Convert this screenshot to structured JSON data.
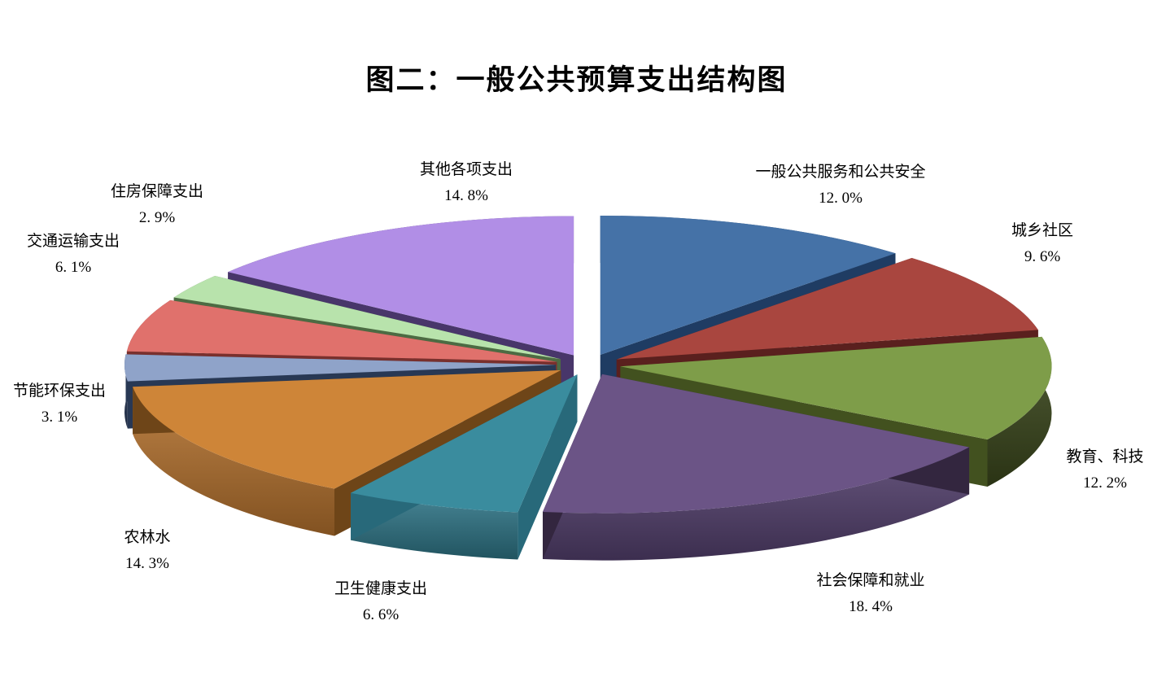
{
  "page": {
    "background": "#FFFFFF"
  },
  "chart_data": {
    "type": "pie",
    "style": "3d-exploded-pie",
    "title": "图二：一般公共预算支出结构图",
    "direction": "clockwise",
    "start_angle_deg": 0,
    "legend_position": "none",
    "data_labels": "category-name-and-percent-outside",
    "categories": [
      "一般公共服务和公共安全",
      "城乡社区",
      "教育、科技",
      "社会保障和就业",
      "卫生健康支出",
      "农林水",
      "节能环保支出",
      "交通运输支出",
      "住房保障支出",
      "其他各项支出"
    ],
    "values": [
      12.0,
      9.6,
      12.2,
      18.4,
      6.6,
      14.3,
      3.1,
      6.1,
      2.9,
      14.8
    ],
    "unit": "%",
    "slices": [
      {
        "label": "一般公共服务和公共安全",
        "value": 12.0,
        "pct_label": "12. 0%",
        "color": "#4572A7",
        "side_color": "#24456E",
        "cut_color": "#1F3C63"
      },
      {
        "label": "城乡社区",
        "value": 9.6,
        "pct_label": "9. 6%",
        "color": "#A9463F",
        "side_color": "#5E2422",
        "cut_color": "#5A201E"
      },
      {
        "label": "教育、科技",
        "value": 12.2,
        "pct_label": "12. 2%",
        "color": "#7E9D49",
        "side_color": "#3A471C",
        "cut_color": "#42511F"
      },
      {
        "label": "社会保障和就业",
        "value": 18.4,
        "pct_label": "18. 4%",
        "color": "#6B5486",
        "side_color": "#53406E",
        "cut_color": "#33263F"
      },
      {
        "label": "卫生健康支出",
        "value": 6.6,
        "pct_label": "6. 6%",
        "color": "#3A8C9E",
        "side_color": "#2E7486",
        "cut_color": "#28697A"
      },
      {
        "label": "农林水",
        "value": 14.3,
        "pct_label": "14. 3%",
        "color": "#CE8538",
        "side_color": "#B5722E",
        "cut_color": "#6E4518"
      },
      {
        "label": "节能环保支出",
        "value": 3.1,
        "pct_label": "3. 1%",
        "color": "#8FA3C9",
        "side_color": "#2B3C5B",
        "cut_color": "#283854"
      },
      {
        "label": "交通运输支出",
        "value": 6.1,
        "pct_label": "6. 1%",
        "color": "#E0716C",
        "side_color": "#6E2B29",
        "cut_color": "#79302D"
      },
      {
        "label": "住房保障支出",
        "value": 2.9,
        "pct_label": "2. 9%",
        "color": "#B8E3AC",
        "side_color": "#517048",
        "cut_color": "#4C6B43"
      },
      {
        "label": "其他各项支出",
        "value": 14.8,
        "pct_label": "14. 8%",
        "color": "#B18EE6",
        "side_color": "#463367",
        "cut_color": "#48366A"
      }
    ]
  }
}
